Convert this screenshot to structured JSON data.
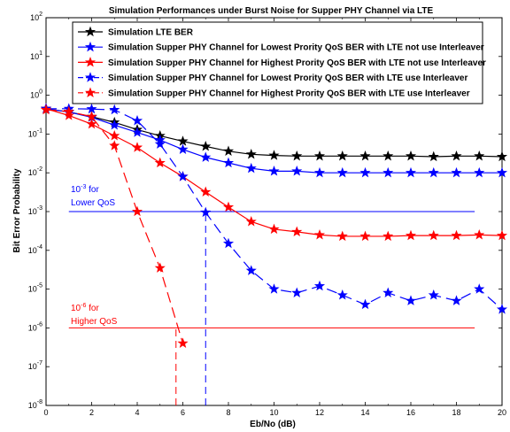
{
  "chart_data": {
    "type": "line",
    "title": "Simulation Performances under Burst Noise for Supper PHY Channel via LTE",
    "xlabel": "Eb/No (dB)",
    "ylabel": "Bit Error Probability",
    "yscale": "log",
    "xlim": [
      0,
      20
    ],
    "ylim": [
      1e-08,
      100
    ],
    "grid": false,
    "legend_position": "top-right",
    "x_ticks": [
      0,
      2,
      4,
      6,
      8,
      10,
      12,
      14,
      16,
      18,
      20
    ],
    "x_tick_labels": [
      "0",
      "2",
      "4",
      "6",
      "8",
      "10",
      "12",
      "14",
      "16",
      "18",
      "20"
    ],
    "y_ticks": [
      1e-08,
      1e-07,
      1e-06,
      1e-05,
      0.0001,
      0.001,
      0.01,
      0.1,
      1,
      10,
      100
    ],
    "y_tick_labels": [
      {
        "base": "10",
        "exp": "-8"
      },
      {
        "base": "10",
        "exp": "-7"
      },
      {
        "base": "10",
        "exp": "-6"
      },
      {
        "base": "10",
        "exp": "-5"
      },
      {
        "base": "10",
        "exp": "-4"
      },
      {
        "base": "10",
        "exp": "-3"
      },
      {
        "base": "10",
        "exp": "-2"
      },
      {
        "base": "10",
        "exp": "-1"
      },
      {
        "base": "10",
        "exp": "0"
      },
      {
        "base": "10",
        "exp": "1"
      },
      {
        "base": "10",
        "exp": "2"
      }
    ],
    "series": [
      {
        "name": "Simulation LTE BER",
        "color": "#000000",
        "line_style": "solid",
        "marker": "star",
        "x": [
          0,
          1,
          2,
          3,
          4,
          5,
          6,
          7,
          8,
          9,
          10,
          11,
          12,
          13,
          14,
          15,
          16,
          17,
          18,
          19,
          20
        ],
        "y": [
          0.45,
          0.37,
          0.28,
          0.2,
          0.13,
          0.09,
          0.065,
          0.048,
          0.036,
          0.03,
          0.028,
          0.027,
          0.027,
          0.027,
          0.027,
          0.027,
          0.027,
          0.026,
          0.027,
          0.027,
          0.026
        ]
      },
      {
        "name": "Simulation Supper PHY Channel for Lowest Prority QoS BER with LTE not use Interleaver",
        "color": "#0000ff",
        "line_style": "solid",
        "marker": "star",
        "x": [
          0,
          1,
          2,
          3,
          4,
          5,
          6,
          7,
          8,
          9,
          10,
          11,
          12,
          13,
          14,
          15,
          16,
          17,
          18,
          19,
          20
        ],
        "y": [
          0.45,
          0.37,
          0.27,
          0.17,
          0.11,
          0.07,
          0.04,
          0.025,
          0.018,
          0.013,
          0.011,
          0.011,
          0.01,
          0.01,
          0.01,
          0.01,
          0.01,
          0.01,
          0.01,
          0.01,
          0.01
        ]
      },
      {
        "name": "Simulation Supper PHY Channel for Highest Prority QoS BER with LTE not use Interleaver",
        "color": "#ff0000",
        "line_style": "solid",
        "marker": "star",
        "x": [
          0,
          1,
          2,
          3,
          4,
          5,
          6,
          7,
          8,
          9,
          10,
          11,
          12,
          13,
          14,
          15,
          16,
          17,
          18,
          19,
          20
        ],
        "y": [
          0.45,
          0.3,
          0.18,
          0.09,
          0.045,
          0.018,
          0.008,
          0.0032,
          0.0013,
          0.00055,
          0.00035,
          0.0003,
          0.00025,
          0.00023,
          0.00023,
          0.00023,
          0.00024,
          0.00024,
          0.00024,
          0.00025,
          0.00024
        ]
      },
      {
        "name": "Simulation Supper PHY Channel for Lowest Prority QoS BER with LTE use Interleaver",
        "color": "#0000ff",
        "line_style": "dashdot",
        "marker": "star",
        "x": [
          0,
          1,
          2,
          3,
          4,
          5,
          6,
          7,
          8,
          9,
          10,
          11,
          12,
          13,
          14,
          15,
          16,
          17,
          18,
          19,
          20
        ],
        "y": [
          0.45,
          0.45,
          0.44,
          0.42,
          0.22,
          0.055,
          0.008,
          0.00095,
          0.00015,
          3e-05,
          1e-05,
          8e-06,
          1.2e-05,
          7e-06,
          4e-06,
          8e-06,
          5e-06,
          7e-06,
          5e-06,
          1e-05,
          3e-06
        ]
      },
      {
        "name": "Simulation Supper PHY Channel for Highest Prority QoS BER with LTE use Interleaver",
        "color": "#ff0000",
        "line_style": "dashdot",
        "marker": "star",
        "x": [
          0,
          1,
          2,
          3,
          4,
          5,
          6
        ],
        "y": [
          0.42,
          0.38,
          0.28,
          0.05,
          0.001,
          3.5e-05,
          4e-07
        ]
      }
    ],
    "reference_lines": [
      {
        "kind": "horizontal",
        "y": 0.001,
        "x_from": 1,
        "x_to": 18.8,
        "color": "#0000ff"
      },
      {
        "kind": "horizontal",
        "y": 1e-06,
        "x_from": 1,
        "x_to": 18.8,
        "color": "#ff0000"
      },
      {
        "kind": "vertical",
        "x": 7,
        "y_from": 1e-08,
        "y_to": 0.00095,
        "color": "#0000ff",
        "line_style": "dashed"
      },
      {
        "kind": "vertical",
        "x": 5.7,
        "y_from": 1e-08,
        "y_to": 1e-06,
        "color": "#ff0000",
        "line_style": "dashed"
      }
    ],
    "annotations": [
      {
        "line1_base": "10",
        "line1_sup": "-3",
        "line1_rest": " for",
        "line2": "Lower QoS",
        "color": "#0000ff"
      },
      {
        "line1_base": "10",
        "line1_sup": "-6",
        "line1_rest": " for",
        "line2": "Higher QoS",
        "color": "#ff0000"
      }
    ]
  }
}
